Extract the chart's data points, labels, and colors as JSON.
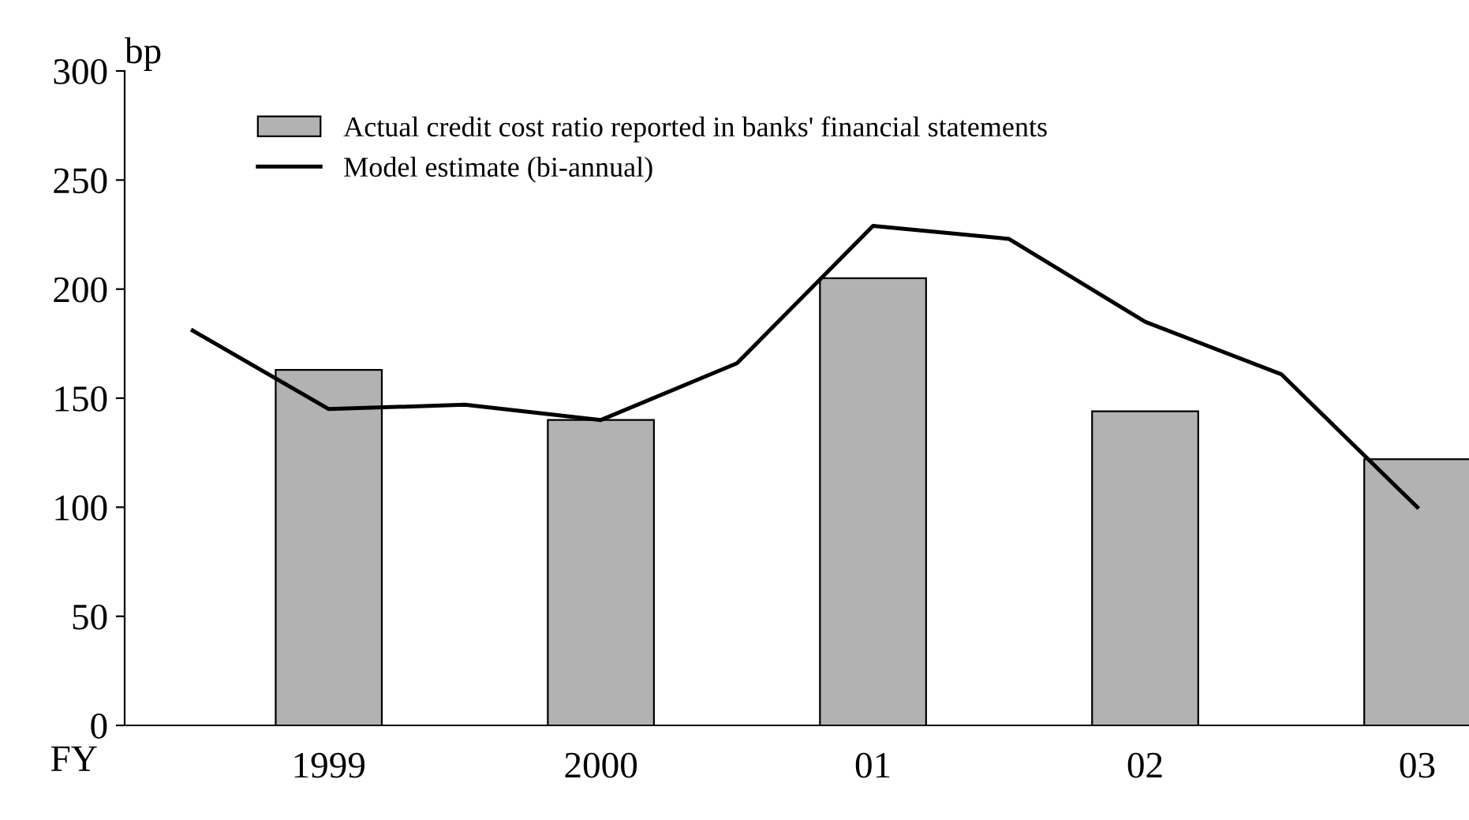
{
  "chart_data": {
    "type": "bar",
    "xlabel": "FY",
    "ylabel": "bp",
    "categories": [
      null,
      "1999",
      null,
      "2000",
      null,
      "01",
      null,
      "02",
      null,
      "03"
    ],
    "series": [
      {
        "name": "Actual credit cost ratio reported in banks' financial statements",
        "color": "#b2b2b2",
        "values": [
          null,
          163,
          null,
          140,
          null,
          205,
          null,
          144,
          null,
          122
        ]
      },
      {
        "name": "Model estimate (bi-annual)",
        "type": "line",
        "color": "#000000",
        "values": [
          181,
          145,
          147,
          140,
          166,
          229,
          223,
          185,
          161,
          100
        ]
      }
    ],
    "ylim": [
      0,
      300
    ],
    "yticks": [
      0,
      50,
      100,
      150,
      200,
      250,
      300
    ],
    "grid": false,
    "legend": "top"
  }
}
